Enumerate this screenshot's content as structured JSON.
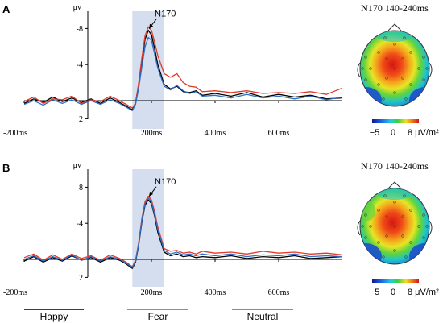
{
  "chart_data": [
    {
      "panel": "A",
      "type": "line",
      "ylabel": "μv",
      "y_ticks": [
        "-8",
        "-4",
        "2"
      ],
      "y_tick_values": [
        -8,
        -4,
        2
      ],
      "ylim": [
        -9.5,
        3.5
      ],
      "x_tick_labels": [
        "-200ms",
        "200ms",
        "400ms",
        "600ms"
      ],
      "x_tick_values": [
        -200,
        200,
        400,
        600
      ],
      "xlim": [
        -200,
        800
      ],
      "highlight_window": [
        140,
        240
      ],
      "annotation": "N170",
      "annotation_at": [
        190,
        -7.8
      ],
      "series": [
        {
          "name": "Happy",
          "color": "#000000",
          "x": [
            -200,
            -170,
            -140,
            -110,
            -80,
            -50,
            -20,
            10,
            40,
            70,
            100,
            120,
            140,
            150,
            160,
            170,
            180,
            190,
            200,
            210,
            220,
            240,
            260,
            280,
            300,
            320,
            340,
            360,
            400,
            450,
            500,
            550,
            600,
            650,
            700,
            750,
            800
          ],
          "y": [
            0.3,
            -0.2,
            0.2,
            -0.4,
            0.1,
            -0.3,
            0.2,
            -0.2,
            0.3,
            -0.3,
            0.2,
            0.6,
            1.0,
            0.2,
            -1.8,
            -4.5,
            -6.8,
            -7.8,
            -7.3,
            -5.8,
            -4.0,
            -1.8,
            -1.3,
            -1.6,
            -1.0,
            -0.9,
            -1.1,
            -0.6,
            -0.8,
            -0.5,
            -0.9,
            -0.4,
            -0.7,
            -0.4,
            -0.6,
            -0.2,
            -0.3
          ]
        },
        {
          "name": "Fear",
          "color": "#e03a2a",
          "x": [
            -200,
            -170,
            -140,
            -110,
            -80,
            -50,
            -20,
            10,
            40,
            70,
            100,
            120,
            140,
            150,
            160,
            170,
            180,
            190,
            200,
            210,
            220,
            240,
            260,
            280,
            300,
            320,
            340,
            360,
            400,
            450,
            500,
            550,
            600,
            650,
            700,
            750,
            800
          ],
          "y": [
            0.1,
            -0.4,
            0.3,
            -0.2,
            -0.1,
            -0.5,
            0.3,
            -0.1,
            0.1,
            -0.5,
            0.0,
            0.4,
            0.8,
            0.3,
            -2.0,
            -4.8,
            -7.2,
            -8.2,
            -7.8,
            -6.5,
            -5.0,
            -3.0,
            -2.6,
            -3.0,
            -2.0,
            -1.6,
            -1.5,
            -1.0,
            -1.1,
            -0.9,
            -1.1,
            -0.8,
            -0.9,
            -0.8,
            -1.0,
            -0.7,
            -1.4
          ]
        },
        {
          "name": "Neutral",
          "color": "#2b6fc7",
          "x": [
            -200,
            -170,
            -140,
            -110,
            -80,
            -50,
            -20,
            10,
            40,
            70,
            100,
            120,
            140,
            150,
            160,
            170,
            180,
            190,
            200,
            210,
            220,
            240,
            260,
            280,
            300,
            320,
            340,
            360,
            400,
            450,
            500,
            550,
            600,
            650,
            700,
            750,
            800
          ],
          "y": [
            0.4,
            0.0,
            0.5,
            -0.1,
            0.3,
            -0.1,
            0.4,
            0.0,
            0.4,
            -0.1,
            0.3,
            0.7,
            1.1,
            0.4,
            -1.4,
            -3.8,
            -6.0,
            -7.0,
            -6.7,
            -5.2,
            -3.6,
            -1.6,
            -1.2,
            -1.7,
            -1.1,
            -0.8,
            -1.0,
            -0.5,
            -0.6,
            -0.3,
            -0.7,
            -0.3,
            -0.5,
            -0.2,
            -0.5,
            -0.1,
            -0.4
          ]
        }
      ]
    },
    {
      "panel": "B",
      "type": "line",
      "ylabel": "μv",
      "y_ticks": [
        "-8",
        "-4",
        "2"
      ],
      "y_tick_values": [
        -8,
        -4,
        2
      ],
      "ylim": [
        -9.5,
        3.5
      ],
      "x_tick_labels": [
        "-200ms",
        "200ms",
        "400ms",
        "600ms"
      ],
      "x_tick_values": [
        -200,
        200,
        400,
        600
      ],
      "xlim": [
        -200,
        800
      ],
      "highlight_window": [
        140,
        240
      ],
      "annotation": "N170",
      "annotation_at": [
        190,
        -6.8
      ],
      "series": [
        {
          "name": "Happy",
          "color": "#000000",
          "x": [
            -200,
            -170,
            -140,
            -110,
            -80,
            -50,
            -20,
            10,
            40,
            70,
            100,
            120,
            140,
            150,
            160,
            170,
            180,
            190,
            200,
            210,
            220,
            240,
            260,
            280,
            300,
            320,
            340,
            360,
            400,
            450,
            500,
            550,
            600,
            650,
            700,
            750,
            800
          ],
          "y": [
            0.2,
            -0.3,
            0.3,
            -0.2,
            0.2,
            -0.4,
            0.1,
            -0.2,
            0.3,
            -0.2,
            0.1,
            0.5,
            1.0,
            0.3,
            -1.6,
            -4.2,
            -6.0,
            -6.6,
            -6.2,
            -4.8,
            -3.0,
            -0.8,
            -0.4,
            -0.6,
            -0.3,
            -0.4,
            -0.2,
            -0.3,
            -0.2,
            -0.4,
            -0.1,
            -0.3,
            -0.2,
            -0.4,
            -0.1,
            -0.2,
            -0.3
          ]
        },
        {
          "name": "Fear",
          "color": "#e03a2a",
          "x": [
            -200,
            -170,
            -140,
            -110,
            -80,
            -50,
            -20,
            10,
            40,
            70,
            100,
            120,
            140,
            150,
            160,
            170,
            180,
            190,
            200,
            210,
            220,
            240,
            260,
            280,
            300,
            320,
            340,
            360,
            400,
            450,
            500,
            550,
            600,
            650,
            700,
            750,
            800
          ],
          "y": [
            -0.2,
            -0.6,
            0.1,
            -0.5,
            0.0,
            -0.6,
            -0.1,
            -0.4,
            0.1,
            -0.5,
            -0.1,
            0.3,
            0.8,
            0.1,
            -1.9,
            -4.6,
            -6.4,
            -7.0,
            -6.6,
            -5.3,
            -3.6,
            -1.2,
            -0.9,
            -1.0,
            -0.7,
            -0.8,
            -0.6,
            -0.9,
            -0.7,
            -0.8,
            -0.6,
            -0.9,
            -0.7,
            -0.8,
            -0.6,
            -0.7,
            -0.5
          ]
        },
        {
          "name": "Neutral",
          "color": "#2b6fc7",
          "x": [
            -200,
            -170,
            -140,
            -110,
            -80,
            -50,
            -20,
            10,
            40,
            70,
            100,
            120,
            140,
            150,
            160,
            170,
            180,
            190,
            200,
            210,
            220,
            240,
            260,
            280,
            300,
            320,
            340,
            360,
            400,
            450,
            500,
            550,
            600,
            650,
            700,
            750,
            800
          ],
          "y": [
            0.0,
            -0.4,
            0.2,
            -0.3,
            0.1,
            -0.5,
            0.1,
            -0.3,
            0.2,
            -0.3,
            0.0,
            0.4,
            0.9,
            0.2,
            -1.7,
            -4.4,
            -6.2,
            -6.8,
            -6.4,
            -5.0,
            -3.3,
            -1.0,
            -0.6,
            -0.8,
            -0.5,
            -0.6,
            -0.4,
            -0.6,
            -0.4,
            -0.6,
            -0.3,
            -0.5,
            -0.4,
            -0.6,
            -0.3,
            -0.4,
            -0.3
          ]
        }
      ]
    }
  ],
  "topomaps": [
    {
      "panel": "A",
      "title": "N170 140-240ms",
      "colorbar_ticks": [
        "−5",
        "0",
        "8 μV/m²"
      ],
      "colorbar_min": -5,
      "colorbar_max": 8
    },
    {
      "panel": "B",
      "title": "N170 140-240ms",
      "colorbar_ticks": [
        "−5",
        "0",
        "8 μV/m²"
      ],
      "colorbar_min": -5,
      "colorbar_max": 8
    }
  ],
  "legend": [
    {
      "label": "Happy",
      "color": "#000000"
    },
    {
      "label": "Fear",
      "color": "#e03a2a"
    },
    {
      "label": "Neutral",
      "color": "#2b6fc7"
    }
  ]
}
